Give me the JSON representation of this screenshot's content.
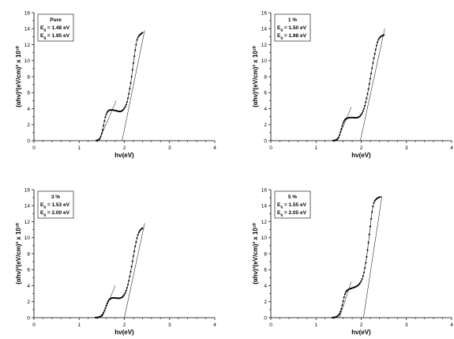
{
  "chart_data": [
    {
      "type": "scatter",
      "xlabel": "hν(eV)",
      "ylabel": "(αhν)²(eV/cm)² x 10¹⁰",
      "xlim": [
        0,
        4
      ],
      "ylim": [
        0,
        16
      ],
      "xticks": [
        0,
        1,
        2,
        3,
        4
      ],
      "yticks": [
        0,
        2,
        4,
        6,
        8,
        10,
        12,
        14,
        16
      ],
      "legend": {
        "label": "Pure",
        "lines": [
          {
            "sym": "E",
            "sub": "g",
            "text": "= 1.48 eV"
          },
          {
            "sym": "E",
            "sub": "g",
            "text": "= 1.95 eV"
          }
        ]
      },
      "series": [
        {
          "x": [
            1.38,
            1.4,
            1.42,
            1.44,
            1.46,
            1.48,
            1.5,
            1.52,
            1.54,
            1.56,
            1.58,
            1.6,
            1.62,
            1.64,
            1.66,
            1.68,
            1.7,
            1.72,
            1.74,
            1.76,
            1.78,
            1.8,
            1.82,
            1.84,
            1.86,
            1.88,
            1.9,
            1.92,
            1.94,
            1.96,
            1.98,
            2.0,
            2.02,
            2.04,
            2.06,
            2.08,
            2.1,
            2.12,
            2.14,
            2.16,
            2.18,
            2.2,
            2.22,
            2.24,
            2.26,
            2.28,
            2.3,
            2.32,
            2.34,
            2.36,
            2.38,
            2.4
          ],
          "y": [
            0.02,
            0.04,
            0.08,
            0.15,
            0.3,
            0.55,
            0.9,
            1.35,
            1.9,
            2.45,
            2.95,
            3.3,
            3.55,
            3.7,
            3.78,
            3.82,
            3.84,
            3.84,
            3.83,
            3.81,
            3.79,
            3.76,
            3.73,
            3.7,
            3.68,
            3.66,
            3.65,
            3.66,
            3.7,
            3.78,
            3.9,
            4.05,
            4.25,
            4.5,
            4.85,
            5.3,
            5.85,
            6.5,
            7.2,
            8.0,
            8.85,
            9.7,
            10.55,
            11.3,
            12.0,
            12.6,
            12.9,
            13.1,
            13.2,
            13.3,
            13.4,
            13.5
          ]
        }
      ],
      "fits": [
        {
          "x1": 1.44,
          "y1": 0.0,
          "x2": 1.82,
          "y2": 5.0
        },
        {
          "x1": 1.95,
          "y1": 0.0,
          "x2": 2.45,
          "y2": 13.8
        }
      ]
    },
    {
      "type": "scatter",
      "xlabel": "hν(eV)",
      "ylabel": "(αhν)²(eV/cm)² x 10¹⁰",
      "xlim": [
        0,
        4
      ],
      "ylim": [
        0,
        16
      ],
      "xticks": [
        0,
        1,
        2,
        3,
        4
      ],
      "yticks": [
        0,
        2,
        4,
        6,
        8,
        10,
        12,
        14,
        16
      ],
      "legend": {
        "label": "1 %",
        "lines": [
          {
            "sym": "E",
            "sub": "g",
            "text": "= 1.50 eV"
          },
          {
            "sym": "E",
            "sub": "g",
            "text": "= 1.98 eV"
          }
        ]
      },
      "series": [
        {
          "x": [
            1.38,
            1.4,
            1.42,
            1.44,
            1.46,
            1.48,
            1.5,
            1.52,
            1.54,
            1.56,
            1.58,
            1.6,
            1.62,
            1.64,
            1.66,
            1.68,
            1.7,
            1.72,
            1.74,
            1.76,
            1.78,
            1.8,
            1.82,
            1.84,
            1.86,
            1.88,
            1.9,
            1.92,
            1.94,
            1.96,
            1.98,
            2.0,
            2.02,
            2.04,
            2.06,
            2.08,
            2.1,
            2.12,
            2.14,
            2.16,
            2.18,
            2.2,
            2.22,
            2.24,
            2.26,
            2.28,
            2.3,
            2.32,
            2.34,
            2.36,
            2.38,
            2.4,
            2.42,
            2.44,
            2.46,
            2.48,
            2.5
          ],
          "y": [
            0.01,
            0.02,
            0.04,
            0.08,
            0.14,
            0.25,
            0.42,
            0.7,
            1.05,
            1.45,
            1.85,
            2.2,
            2.45,
            2.62,
            2.72,
            2.78,
            2.82,
            2.85,
            2.87,
            2.88,
            2.89,
            2.89,
            2.88,
            2.87,
            2.86,
            2.86,
            2.87,
            2.89,
            2.93,
            3.0,
            3.1,
            3.25,
            3.45,
            3.7,
            4.0,
            4.35,
            4.8,
            5.3,
            5.85,
            6.45,
            7.1,
            7.75,
            8.4,
            9.05,
            9.7,
            10.3,
            10.85,
            11.4,
            11.9,
            12.3,
            12.6,
            12.8,
            12.95,
            13.05,
            13.1,
            13.15,
            13.2
          ]
        }
      ],
      "fits": [
        {
          "x1": 1.47,
          "y1": 0.0,
          "x2": 1.78,
          "y2": 4.2
        },
        {
          "x1": 1.98,
          "y1": 0.0,
          "x2": 2.52,
          "y2": 14.0
        }
      ]
    },
    {
      "type": "scatter",
      "xlabel": "hν(eV)",
      "ylabel": "(αhν)²(eV/cm)² x 10¹⁰",
      "xlim": [
        0,
        4
      ],
      "ylim": [
        0,
        16
      ],
      "xticks": [
        0,
        1,
        2,
        3,
        4
      ],
      "yticks": [
        0,
        2,
        4,
        6,
        8,
        10,
        12,
        14,
        16
      ],
      "legend": {
        "label": "3 %",
        "lines": [
          {
            "sym": "E",
            "sub": "g",
            "text": "= 1.53 eV"
          },
          {
            "sym": "E",
            "sub": "g",
            "text": "= 2.00 eV"
          }
        ]
      },
      "series": [
        {
          "x": [
            1.36,
            1.38,
            1.4,
            1.42,
            1.44,
            1.46,
            1.48,
            1.5,
            1.52,
            1.54,
            1.56,
            1.58,
            1.6,
            1.62,
            1.64,
            1.66,
            1.68,
            1.7,
            1.72,
            1.74,
            1.76,
            1.78,
            1.8,
            1.82,
            1.84,
            1.86,
            1.88,
            1.9,
            1.92,
            1.94,
            1.96,
            1.98,
            2.0,
            2.02,
            2.04,
            2.06,
            2.08,
            2.1,
            2.12,
            2.14,
            2.16,
            2.18,
            2.2,
            2.22,
            2.24,
            2.26,
            2.28,
            2.3,
            2.32,
            2.34,
            2.36,
            2.38,
            2.4
          ],
          "y": [
            0.01,
            0.02,
            0.03,
            0.05,
            0.08,
            0.12,
            0.18,
            0.28,
            0.42,
            0.62,
            0.88,
            1.18,
            1.5,
            1.8,
            2.05,
            2.22,
            2.33,
            2.4,
            2.44,
            2.46,
            2.47,
            2.47,
            2.46,
            2.45,
            2.44,
            2.43,
            2.43,
            2.44,
            2.47,
            2.52,
            2.6,
            2.72,
            2.88,
            3.1,
            3.38,
            3.72,
            4.12,
            4.6,
            5.15,
            5.75,
            6.4,
            7.05,
            7.7,
            8.3,
            8.9,
            9.45,
            9.95,
            10.35,
            10.65,
            10.85,
            11.0,
            11.1,
            11.2
          ]
        }
      ],
      "fits": [
        {
          "x1": 1.5,
          "y1": 0.0,
          "x2": 1.8,
          "y2": 4.0
        },
        {
          "x1": 2.0,
          "y1": 0.0,
          "x2": 2.45,
          "y2": 11.8
        }
      ]
    },
    {
      "type": "scatter",
      "xlabel": "hν(eV)",
      "ylabel": "(αhν)²(eV/cm)² x 10¹⁰",
      "xlim": [
        0,
        4
      ],
      "ylim": [
        0,
        16
      ],
      "xticks": [
        0,
        1,
        2,
        3,
        4
      ],
      "yticks": [
        0,
        2,
        4,
        6,
        8,
        10,
        12,
        14,
        16
      ],
      "legend": {
        "label": "5 %",
        "lines": [
          {
            "sym": "E",
            "sub": "g",
            "text": "= 1.55 eV"
          },
          {
            "sym": "E",
            "sub": "g",
            "text": "= 2.05 eV"
          }
        ]
      },
      "series": [
        {
          "x": [
            1.36,
            1.38,
            1.4,
            1.42,
            1.44,
            1.46,
            1.48,
            1.5,
            1.52,
            1.54,
            1.56,
            1.58,
            1.6,
            1.62,
            1.64,
            1.66,
            1.68,
            1.7,
            1.72,
            1.74,
            1.76,
            1.78,
            1.8,
            1.82,
            1.84,
            1.86,
            1.88,
            1.9,
            1.92,
            1.94,
            1.96,
            1.98,
            2.0,
            2.02,
            2.04,
            2.06,
            2.08,
            2.1,
            2.12,
            2.14,
            2.16,
            2.18,
            2.2,
            2.22,
            2.24,
            2.26,
            2.28,
            2.3,
            2.32,
            2.34,
            2.36,
            2.38,
            2.4,
            2.42
          ],
          "y": [
            0.01,
            0.02,
            0.03,
            0.05,
            0.08,
            0.13,
            0.2,
            0.32,
            0.5,
            0.75,
            1.1,
            1.55,
            2.05,
            2.55,
            2.95,
            3.2,
            3.35,
            3.45,
            3.52,
            3.58,
            3.62,
            3.66,
            3.7,
            3.74,
            3.78,
            3.82,
            3.87,
            3.93,
            4.0,
            4.1,
            4.22,
            4.38,
            4.58,
            4.85,
            5.2,
            5.65,
            6.2,
            6.85,
            7.6,
            8.45,
            9.4,
            10.4,
            11.4,
            12.35,
            13.2,
            13.9,
            14.35,
            14.6,
            14.75,
            14.85,
            14.95,
            15.0,
            15.05,
            15.1
          ]
        }
      ],
      "fits": [
        {
          "x1": 1.52,
          "y1": 0.0,
          "x2": 1.78,
          "y2": 4.5
        },
        {
          "x1": 2.05,
          "y1": 0.0,
          "x2": 2.46,
          "y2": 15.2
        }
      ]
    }
  ]
}
